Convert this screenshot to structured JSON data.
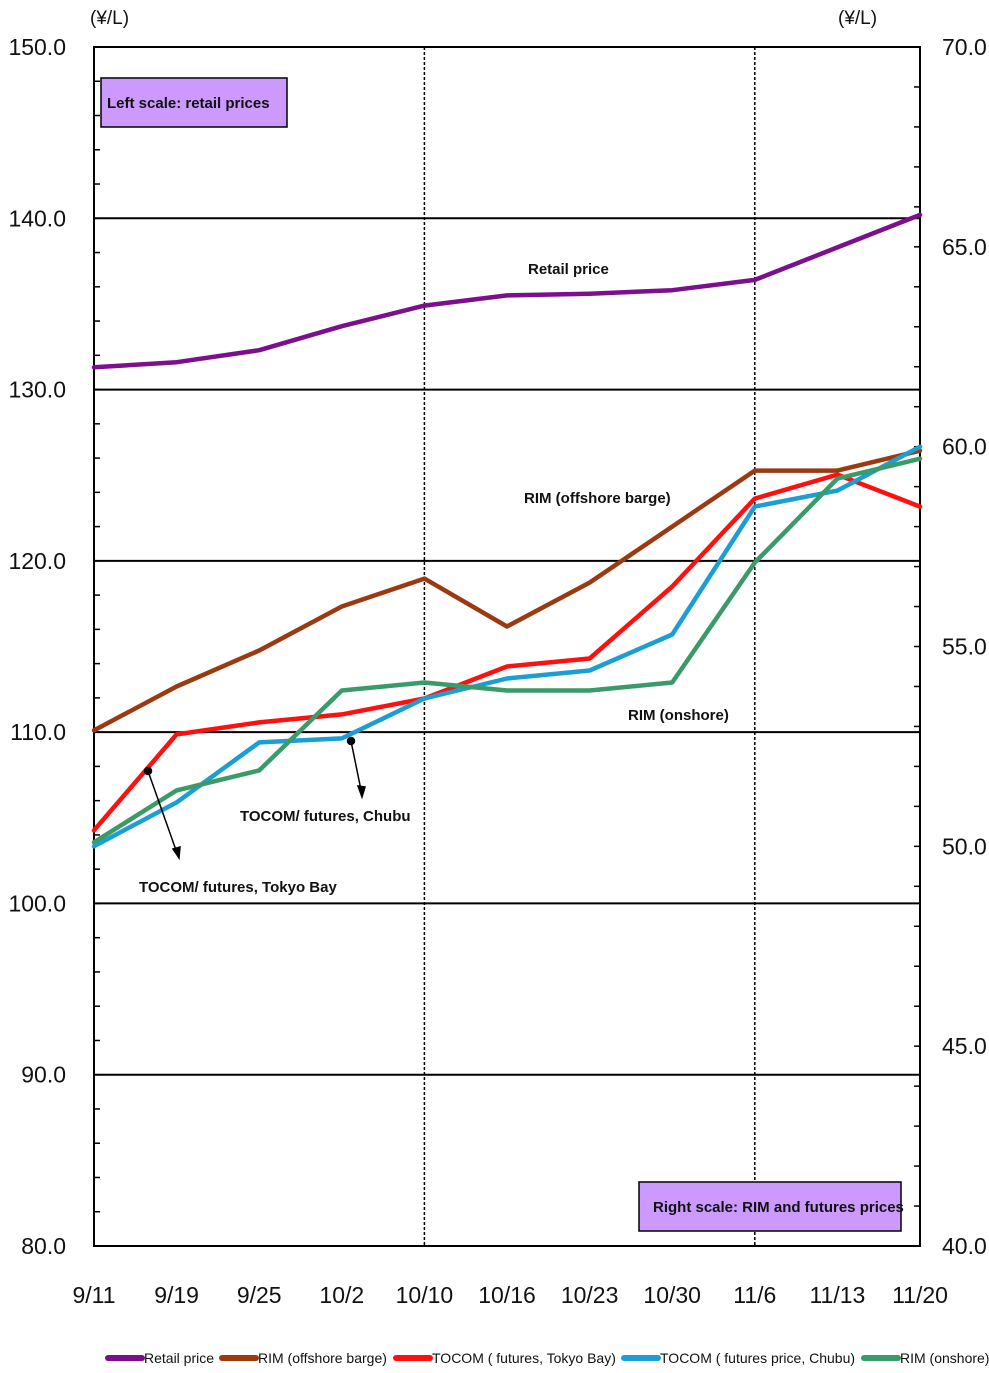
{
  "chart_data": {
    "type": "line",
    "left_axis_unit": "(¥/L)",
    "right_axis_unit": "(¥/L)",
    "left_ylim": [
      80,
      150
    ],
    "left_ticks": [
      "150.0",
      "140.0",
      "130.0",
      "120.0",
      "110.0",
      "100.0",
      "90.0",
      "80.0"
    ],
    "right_ylim": [
      40,
      70
    ],
    "right_ticks": [
      "70.0",
      "65.0",
      "60.0",
      "55.0",
      "50.0",
      "45.0",
      "40.0"
    ],
    "categories": [
      "9/11",
      "9/19",
      "9/25",
      "10/2",
      "10/10",
      "10/16",
      "10/23",
      "10/30",
      "11/6",
      "11/13",
      "11/20"
    ],
    "grid": true,
    "series": [
      {
        "name": "Retail price",
        "axis": "left",
        "color": "#7B0F8E",
        "values": [
          131.3,
          131.6,
          132.3,
          133.7,
          134.9,
          135.5,
          135.6,
          135.8,
          136.4,
          138.3,
          140.2
        ]
      },
      {
        "name": "RIM (offshore barge)",
        "axis": "right",
        "color": "#9B3A10",
        "values": [
          52.9,
          54.0,
          54.9,
          56.0,
          56.7,
          55.5,
          56.6,
          58.0,
          59.4,
          59.4,
          59.9
        ]
      },
      {
        "name": "TOCOM ( futures, Tokyo Bay)",
        "axis": "right",
        "color": "#FF1010",
        "values": [
          50.4,
          52.8,
          53.1,
          53.3,
          53.7,
          54.5,
          54.7,
          56.5,
          58.7,
          59.3,
          58.5
        ]
      },
      {
        "name": "TOCOM ( futures price, Chubu)",
        "axis": "right",
        "color": "#1A9ED4",
        "values": [
          50.0,
          51.1,
          52.6,
          52.7,
          53.7,
          54.2,
          54.4,
          55.3,
          58.5,
          58.9,
          60.0
        ]
      },
      {
        "name": "RIM (onshore)",
        "axis": "right",
        "color": "#3A9A68",
        "values": [
          50.1,
          51.4,
          51.9,
          53.9,
          54.1,
          53.9,
          53.9,
          54.1,
          57.1,
          59.2,
          59.7
        ]
      }
    ],
    "annotations": {
      "retail": "Retail price",
      "offshore": "RIM (offshore barge)",
      "onshore": "RIM (onshore)",
      "chubu": "TOCOM/ futures, Chubu",
      "tokyo": "TOCOM/ futures, Tokyo Bay"
    },
    "scale_notes": {
      "left": "Left scale:  retail prices",
      "right": "Right scale:  RIM and futures prices"
    },
    "legend_position": "bottom"
  }
}
